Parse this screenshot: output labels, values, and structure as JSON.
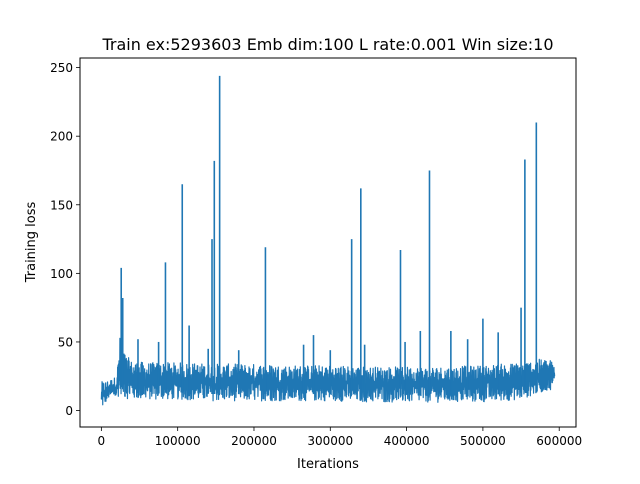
{
  "chart_data": {
    "type": "line",
    "title": "Train ex:5293603 Emb dim:100 L rate:0.001 Win size:10",
    "xlabel": "Iterations",
    "ylabel": "Training loss",
    "xlim": [
      -28000,
      622000
    ],
    "ylim": [
      -12,
      257
    ],
    "xticks": [
      0,
      100000,
      200000,
      300000,
      400000,
      500000,
      600000
    ],
    "xtick_labels": [
      "0",
      "100000",
      "200000",
      "300000",
      "400000",
      "500000",
      "600000"
    ],
    "yticks": [
      0,
      50,
      100,
      150,
      200,
      250
    ],
    "ytick_labels": [
      "0",
      "50",
      "100",
      "150",
      "200",
      "250"
    ],
    "grid": false,
    "series": [
      {
        "color": "#1f77b4",
        "band": {
          "x": [
            0,
            10000,
            20000,
            26000,
            30000,
            40000,
            60000,
            100000,
            150000,
            200000,
            250000,
            300000,
            350000,
            400000,
            450000,
            500000,
            550000,
            570000,
            580000,
            594000
          ],
          "low": [
            1,
            9,
            9,
            12,
            9,
            8,
            8,
            8,
            7,
            7,
            7,
            7,
            6,
            6,
            6,
            6,
            8,
            12,
            14,
            16
          ],
          "high": [
            21,
            22,
            25,
            65,
            42,
            36,
            35,
            35,
            34,
            34,
            33,
            33,
            32,
            32,
            32,
            33,
            35,
            37,
            38,
            36
          ]
        },
        "spikes": [
          {
            "x": 26000,
            "y": 104
          },
          {
            "x": 28000,
            "y": 82
          },
          {
            "x": 48000,
            "y": 52
          },
          {
            "x": 75000,
            "y": 50
          },
          {
            "x": 84000,
            "y": 108
          },
          {
            "x": 106000,
            "y": 165
          },
          {
            "x": 115000,
            "y": 62
          },
          {
            "x": 140000,
            "y": 45
          },
          {
            "x": 145000,
            "y": 125
          },
          {
            "x": 148000,
            "y": 182
          },
          {
            "x": 155000,
            "y": 244
          },
          {
            "x": 180000,
            "y": 44
          },
          {
            "x": 215000,
            "y": 119
          },
          {
            "x": 265000,
            "y": 48
          },
          {
            "x": 278000,
            "y": 55
          },
          {
            "x": 300000,
            "y": 44
          },
          {
            "x": 328000,
            "y": 125
          },
          {
            "x": 340000,
            "y": 162
          },
          {
            "x": 345000,
            "y": 48
          },
          {
            "x": 392000,
            "y": 117
          },
          {
            "x": 398000,
            "y": 50
          },
          {
            "x": 418000,
            "y": 58
          },
          {
            "x": 430000,
            "y": 175
          },
          {
            "x": 458000,
            "y": 58
          },
          {
            "x": 480000,
            "y": 52
          },
          {
            "x": 500000,
            "y": 67
          },
          {
            "x": 520000,
            "y": 57
          },
          {
            "x": 550000,
            "y": 75
          },
          {
            "x": 555000,
            "y": 183
          },
          {
            "x": 570000,
            "y": 210
          }
        ]
      }
    ]
  }
}
